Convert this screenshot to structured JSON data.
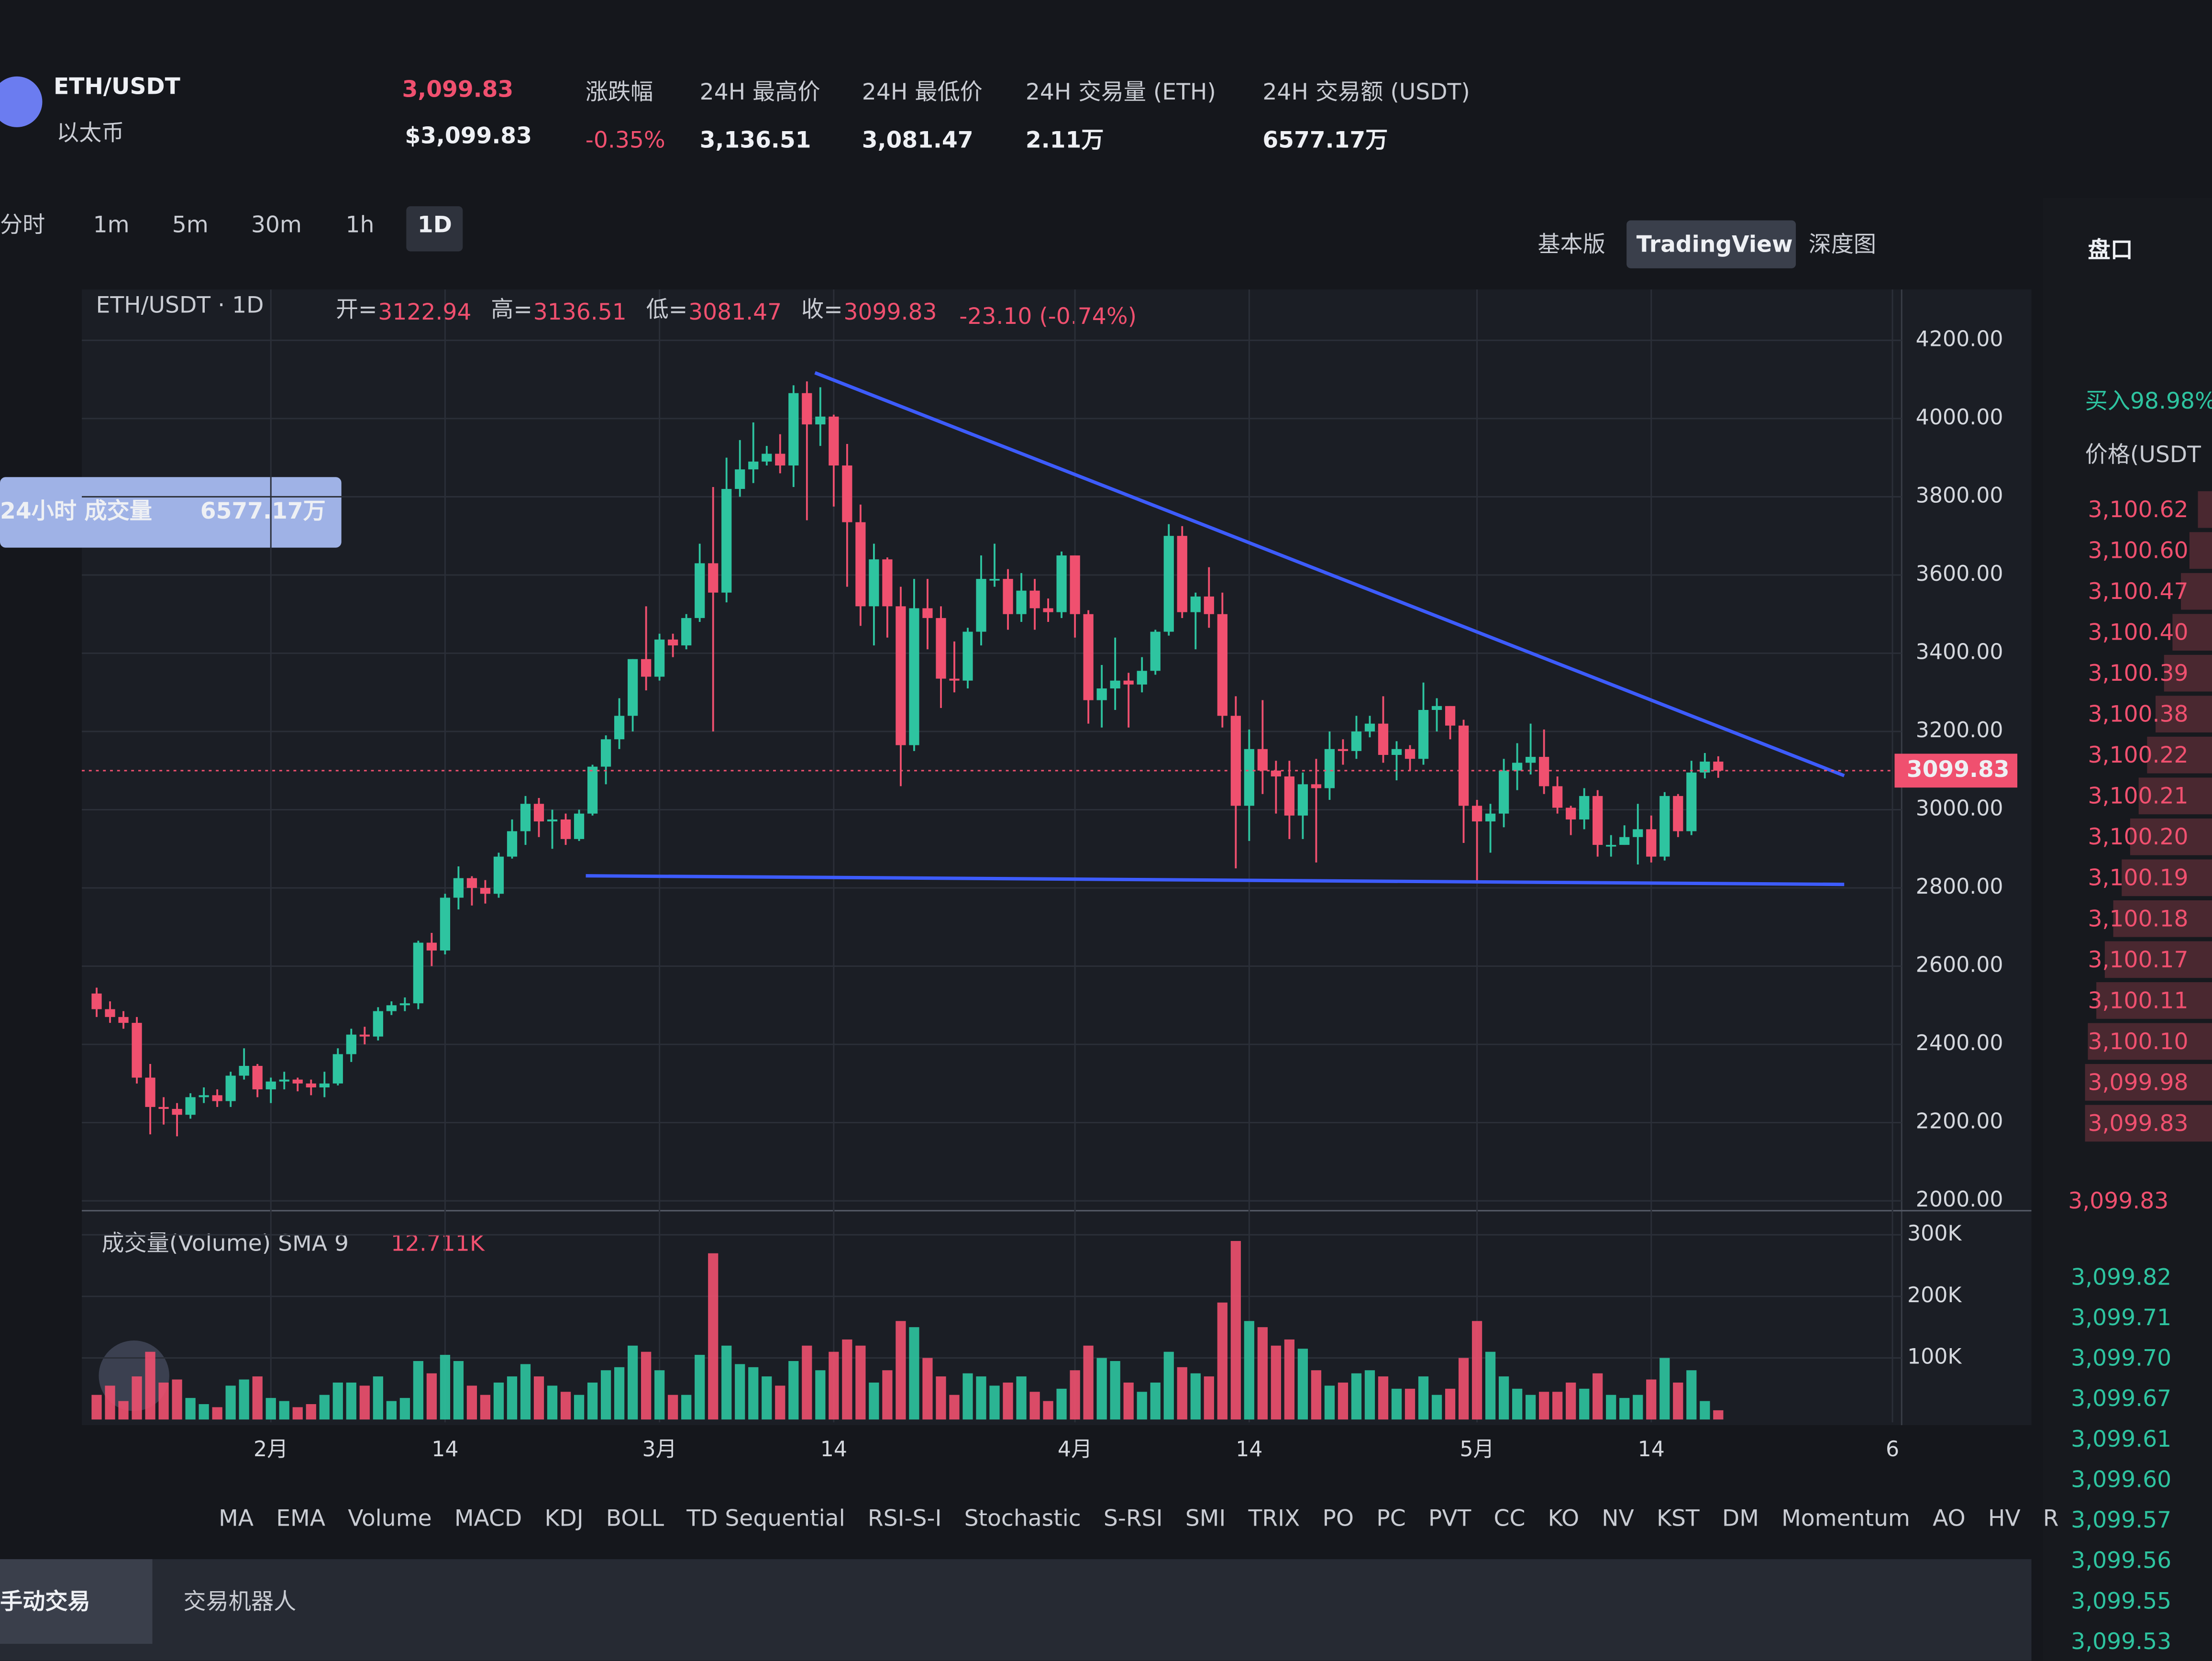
{
  "header": {
    "pair": "ETH/USDT",
    "name": "以太币",
    "price": "3,099.83",
    "price_usd": "$3,099.83",
    "stats": [
      {
        "label": "涨跌幅",
        "value": "-0.35%"
      },
      {
        "label": "24H 最高价",
        "value": "3,136.51"
      },
      {
        "label": "24H 最低价",
        "value": "3,081.47"
      },
      {
        "label": "24H 交易量 (ETH)",
        "value": "2.11万"
      },
      {
        "label": "24H 交易额 (USDT)",
        "value": "6577.17万"
      }
    ]
  },
  "toolbar": {
    "intervals": [
      "分时",
      "1m",
      "5m",
      "30m",
      "1h",
      "1D"
    ],
    "views": [
      "基本版",
      "TradingView",
      "深度图"
    ]
  },
  "tooltip": {
    "label": "24小时 成交量",
    "value": "6577.17万"
  },
  "chart_data": {
    "type": "candlestick",
    "legend": {
      "symbol": "ETH/USDT · 1D",
      "open": "开=",
      "high": "高=",
      "low": "低=",
      "close": "收=",
      "change": "-23.10 (-0.74%)"
    },
    "xlim": [
      -1,
      134
    ],
    "xticks": [
      {
        "value": 13,
        "label": "2月"
      },
      {
        "value": 26,
        "label": "14"
      },
      {
        "value": 42,
        "label": "3月"
      },
      {
        "value": 55,
        "label": "14"
      },
      {
        "value": 73,
        "label": "4月"
      },
      {
        "value": 86,
        "label": "14"
      },
      {
        "value": 103,
        "label": "5月"
      },
      {
        "value": 116,
        "label": "14"
      },
      {
        "value": 134,
        "label": "6"
      }
    ],
    "ylim": [
      2000,
      4330
    ],
    "yticks": [
      {
        "value": 2000,
        "label": "2000.00"
      },
      {
        "value": 2200,
        "label": "2200.00"
      },
      {
        "value": 2400,
        "label": "2400.00"
      },
      {
        "value": 2600,
        "label": "2600.00"
      },
      {
        "value": 2800,
        "label": "2800.00"
      },
      {
        "value": 3000,
        "label": "3000.00"
      },
      {
        "value": 3200,
        "label": "3200.00"
      },
      {
        "value": 3400,
        "label": "3400.00"
      },
      {
        "value": 3600,
        "label": "3600.00"
      },
      {
        "value": 3800,
        "label": "3800.00"
      },
      {
        "value": 4000,
        "label": "4000.00"
      },
      {
        "value": 4200,
        "label": "4200.00"
      }
    ],
    "grid": true,
    "up_color": "#2ec4a0",
    "down_color": "#f0506f",
    "candles": [
      [
        2530,
        2545,
        2470,
        2490
      ],
      [
        2490,
        2510,
        2455,
        2470
      ],
      [
        2470,
        2485,
        2440,
        2455
      ],
      [
        2455,
        2470,
        2300,
        2315
      ],
      [
        2315,
        2350,
        2170,
        2240
      ],
      [
        2240,
        2265,
        2195,
        2235
      ],
      [
        2235,
        2250,
        2165,
        2220
      ],
      [
        2220,
        2275,
        2210,
        2265
      ],
      [
        2265,
        2290,
        2250,
        2270
      ],
      [
        2270,
        2285,
        2240,
        2255
      ],
      [
        2255,
        2330,
        2240,
        2320
      ],
      [
        2320,
        2390,
        2310,
        2345
      ],
      [
        2345,
        2350,
        2265,
        2285
      ],
      [
        2285,
        2315,
        2250,
        2305
      ],
      [
        2305,
        2330,
        2285,
        2310
      ],
      [
        2310,
        2315,
        2280,
        2300
      ],
      [
        2300,
        2310,
        2270,
        2290
      ],
      [
        2290,
        2330,
        2265,
        2300
      ],
      [
        2300,
        2390,
        2295,
        2375
      ],
      [
        2375,
        2440,
        2355,
        2425
      ],
      [
        2425,
        2445,
        2400,
        2420
      ],
      [
        2420,
        2495,
        2410,
        2485
      ],
      [
        2485,
        2510,
        2475,
        2500
      ],
      [
        2500,
        2520,
        2485,
        2505
      ],
      [
        2505,
        2665,
        2490,
        2660
      ],
      [
        2660,
        2685,
        2600,
        2640
      ],
      [
        2640,
        2785,
        2630,
        2775
      ],
      [
        2775,
        2855,
        2745,
        2825
      ],
      [
        2825,
        2830,
        2755,
        2800
      ],
      [
        2800,
        2820,
        2760,
        2785
      ],
      [
        2785,
        2890,
        2775,
        2880
      ],
      [
        2880,
        2975,
        2875,
        2945
      ],
      [
        2945,
        3035,
        2910,
        3015
      ],
      [
        3015,
        3030,
        2930,
        2970
      ],
      [
        2970,
        3000,
        2900,
        2975
      ],
      [
        2975,
        2990,
        2910,
        2925
      ],
      [
        2925,
        3000,
        2920,
        2990
      ],
      [
        2990,
        3115,
        2985,
        3110
      ],
      [
        3110,
        3190,
        3065,
        3180
      ],
      [
        3180,
        3285,
        3155,
        3240
      ],
      [
        3240,
        3385,
        3200,
        3385
      ],
      [
        3385,
        3520,
        3305,
        3340
      ],
      [
        3340,
        3450,
        3330,
        3435
      ],
      [
        3435,
        3450,
        3390,
        3420
      ],
      [
        3420,
        3500,
        3410,
        3490
      ],
      [
        3490,
        3680,
        3480,
        3630
      ],
      [
        3630,
        3825,
        3200,
        3555
      ],
      [
        3555,
        3900,
        3530,
        3820
      ],
      [
        3820,
        3945,
        3800,
        3870
      ],
      [
        3870,
        3990,
        3835,
        3890
      ],
      [
        3890,
        3930,
        3880,
        3910
      ],
      [
        3910,
        3960,
        3860,
        3880
      ],
      [
        3880,
        4085,
        3825,
        4065
      ],
      [
        4065,
        4095,
        3740,
        3985
      ],
      [
        3985,
        4080,
        3930,
        4005
      ],
      [
        4005,
        4010,
        3775,
        3880
      ],
      [
        3880,
        3935,
        3570,
        3735
      ],
      [
        3735,
        3780,
        3470,
        3520
      ],
      [
        3520,
        3680,
        3420,
        3640
      ],
      [
        3640,
        3645,
        3440,
        3520
      ],
      [
        3520,
        3570,
        3060,
        3165
      ],
      [
        3165,
        3590,
        3150,
        3515
      ],
      [
        3515,
        3590,
        3410,
        3490
      ],
      [
        3490,
        3520,
        3260,
        3335
      ],
      [
        3335,
        3430,
        3300,
        3330
      ],
      [
        3330,
        3465,
        3310,
        3455
      ],
      [
        3455,
        3650,
        3420,
        3590
      ],
      [
        3590,
        3680,
        3570,
        3590
      ],
      [
        3590,
        3615,
        3460,
        3500
      ],
      [
        3500,
        3605,
        3480,
        3560
      ],
      [
        3560,
        3590,
        3460,
        3515
      ],
      [
        3515,
        3540,
        3480,
        3505
      ],
      [
        3505,
        3660,
        3490,
        3650
      ],
      [
        3650,
        3650,
        3440,
        3500
      ],
      [
        3500,
        3510,
        3220,
        3280
      ],
      [
        3280,
        3370,
        3210,
        3310
      ],
      [
        3310,
        3440,
        3255,
        3330
      ],
      [
        3330,
        3350,
        3210,
        3320
      ],
      [
        3320,
        3390,
        3300,
        3355
      ],
      [
        3355,
        3460,
        3345,
        3455
      ],
      [
        3455,
        3730,
        3445,
        3700
      ],
      [
        3700,
        3725,
        3490,
        3505
      ],
      [
        3505,
        3555,
        3410,
        3545
      ],
      [
        3545,
        3620,
        3465,
        3500
      ],
      [
        3500,
        3555,
        3210,
        3240
      ],
      [
        3240,
        3290,
        2850,
        3010
      ],
      [
        3010,
        3205,
        2920,
        3155
      ],
      [
        3155,
        3280,
        3040,
        3100
      ],
      [
        3100,
        3125,
        2990,
        3085
      ],
      [
        3085,
        3125,
        2925,
        2985
      ],
      [
        2985,
        3095,
        2925,
        3065
      ],
      [
        3065,
        3130,
        2865,
        3055
      ],
      [
        3055,
        3200,
        3025,
        3155
      ],
      [
        3155,
        3180,
        3115,
        3150
      ],
      [
        3150,
        3240,
        3130,
        3200
      ],
      [
        3200,
        3240,
        3185,
        3220
      ],
      [
        3220,
        3290,
        3120,
        3140
      ],
      [
        3140,
        3175,
        3075,
        3155
      ],
      [
        3155,
        3165,
        3100,
        3130
      ],
      [
        3130,
        3325,
        3115,
        3255
      ],
      [
        3255,
        3285,
        3200,
        3265
      ],
      [
        3265,
        3265,
        3180,
        3215
      ],
      [
        3215,
        3230,
        2915,
        3010
      ],
      [
        3010,
        3025,
        2815,
        2970
      ],
      [
        2970,
        3015,
        2890,
        2990
      ],
      [
        2990,
        3130,
        2955,
        3100
      ],
      [
        3100,
        3170,
        3050,
        3120
      ],
      [
        3120,
        3220,
        3090,
        3135
      ],
      [
        3135,
        3205,
        3040,
        3060
      ],
      [
        3060,
        3085,
        2990,
        3005
      ],
      [
        3005,
        3010,
        2935,
        2975
      ],
      [
        2975,
        3055,
        2950,
        3035
      ],
      [
        3035,
        3050,
        2880,
        2910
      ],
      [
        2910,
        2935,
        2880,
        2910
      ],
      [
        2910,
        2960,
        2910,
        2930
      ],
      [
        2930,
        3015,
        2860,
        2950
      ],
      [
        2950,
        2985,
        2865,
        2880
      ],
      [
        2880,
        3045,
        2870,
        3035
      ],
      [
        3035,
        3040,
        2930,
        2945
      ],
      [
        2945,
        3125,
        2935,
        3095
      ],
      [
        3095,
        3145,
        3080,
        3122.94
      ],
      [
        3122.94,
        3136.51,
        3081.47,
        3099.83
      ]
    ],
    "trendlines": [
      {
        "x": [
          53.6,
          130.4
        ],
        "y": [
          4117,
          3087
        ]
      },
      {
        "x": [
          36.5,
          130.4
        ],
        "y": [
          2831,
          2809
        ]
      }
    ],
    "trendline_color": "#3d5cff",
    "volume": {
      "title": "成交量(Volume) SMA 9",
      "sma": "12.711K",
      "ylim": [
        0,
        330
      ],
      "yticks": [
        {
          "value": 100,
          "label": "100K"
        },
        {
          "value": 200,
          "label": "200K"
        },
        {
          "value": 300,
          "label": "300K"
        }
      ],
      "values": [
        40,
        55,
        30,
        70,
        110,
        60,
        65,
        35,
        25,
        20,
        55,
        65,
        70,
        35,
        30,
        20,
        25,
        40,
        60,
        60,
        55,
        70,
        30,
        35,
        95,
        75,
        105,
        95,
        55,
        40,
        60,
        70,
        90,
        70,
        55,
        45,
        40,
        60,
        80,
        85,
        120,
        110,
        80,
        40,
        40,
        105,
        270,
        120,
        90,
        85,
        70,
        55,
        95,
        120,
        80,
        110,
        130,
        120,
        60,
        80,
        160,
        150,
        100,
        70,
        40,
        75,
        70,
        55,
        60,
        70,
        45,
        30,
        50,
        80,
        120,
        100,
        95,
        60,
        45,
        60,
        110,
        85,
        75,
        70,
        190,
        290,
        160,
        150,
        120,
        130,
        115,
        80,
        55,
        60,
        75,
        80,
        70,
        50,
        50,
        70,
        40,
        50,
        100,
        160,
        110,
        70,
        50,
        40,
        45,
        45,
        60,
        50,
        75,
        40,
        35,
        40,
        65,
        100,
        60,
        80,
        30,
        15
      ]
    }
  },
  "indicators": [
    "MA",
    "EMA",
    "Volume",
    "MACD",
    "KDJ",
    "BOLL",
    "TD Sequential",
    "RSI-S-I",
    "Stochastic",
    "S-RSI",
    "SMI",
    "TRIX",
    "PO",
    "PC",
    "PVT",
    "CC",
    "KO",
    "NV",
    "KST",
    "DM",
    "Momentum",
    "AO",
    "HV",
    "R"
  ],
  "bottom_tabs": [
    "手动交易",
    "交易机器人"
  ],
  "orderbook": {
    "tab": "盘口",
    "buy_ratio": "买入98.98%",
    "price_header": "价格(USDT",
    "asks": [
      "3,100.62",
      "3,100.60",
      "3,100.47",
      "3,100.40",
      "3,100.39",
      "3,100.38",
      "3,100.22",
      "3,100.21",
      "3,100.20",
      "3,100.19",
      "3,100.18",
      "3,100.17",
      "3,100.11",
      "3,100.10",
      "3,099.98",
      "3,099.83"
    ],
    "bids": [
      "3,099.82",
      "3,099.71",
      "3,099.70",
      "3,099.67",
      "3,099.61",
      "3,099.60",
      "3,099.57",
      "3,099.56",
      "3,099.55",
      "3,099.53"
    ]
  }
}
